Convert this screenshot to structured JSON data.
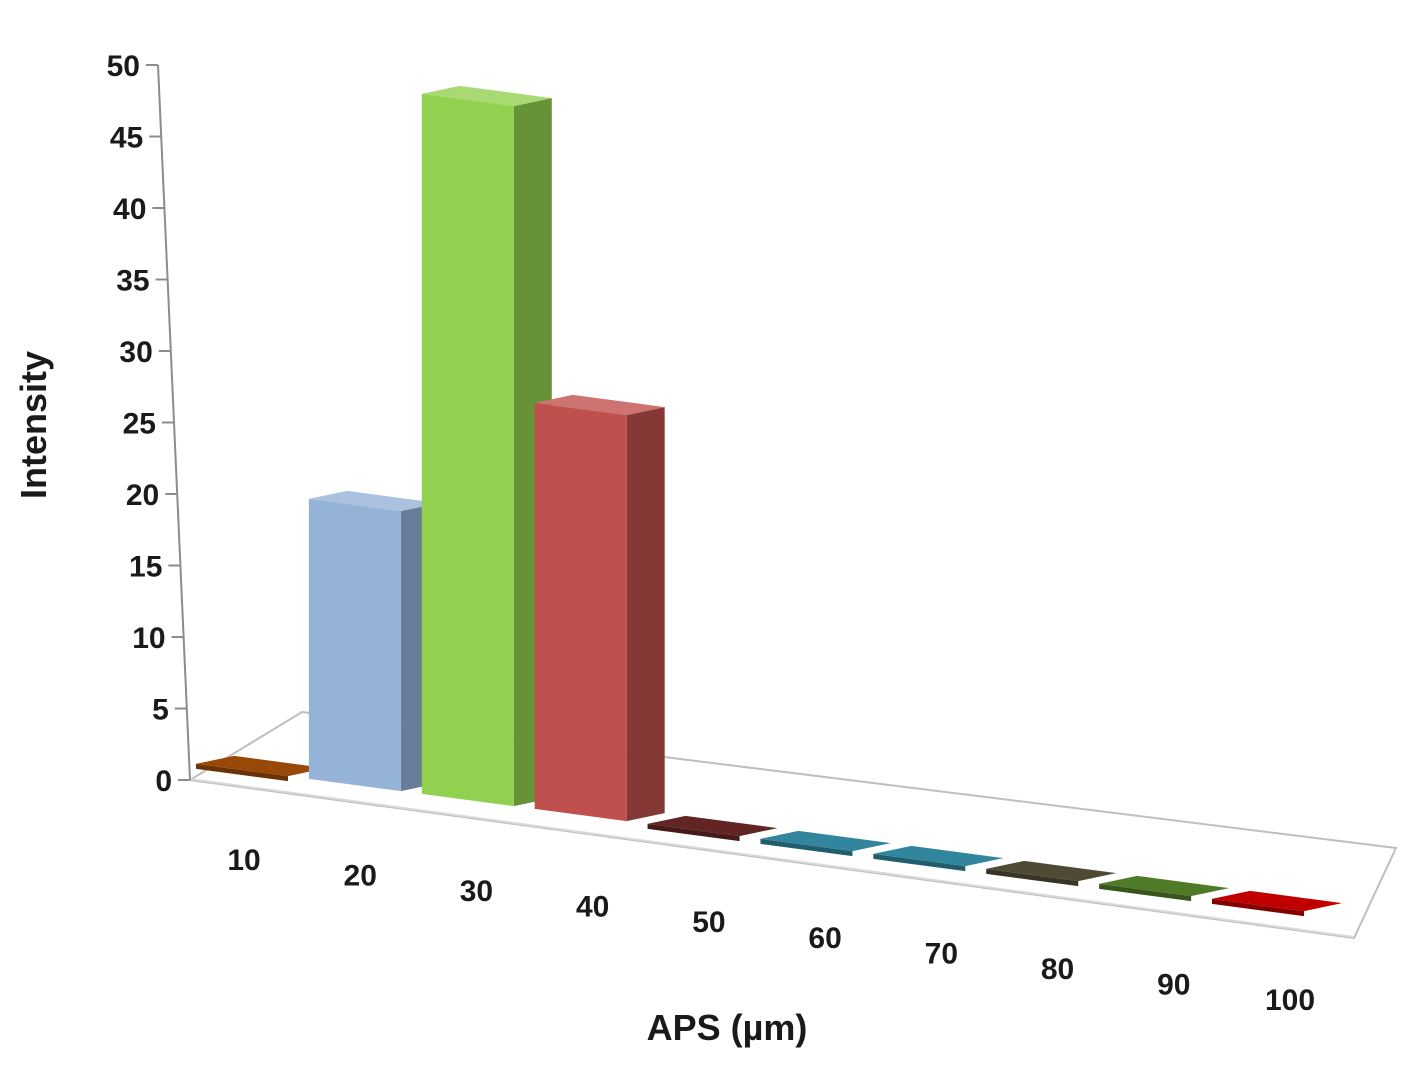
{
  "chart_data": {
    "type": "bar",
    "style": "3d-column",
    "title": "",
    "xlabel": "APS (µm)",
    "ylabel": "Intensity",
    "categories": [
      "10",
      "20",
      "30",
      "40",
      "50",
      "60",
      "70",
      "80",
      "90",
      "100"
    ],
    "values": [
      0,
      20,
      50,
      29,
      0,
      0,
      0,
      0,
      0,
      0
    ],
    "ylim": [
      0,
      50
    ],
    "y_ticks": [
      "0",
      "5",
      "10",
      "15",
      "20",
      "25",
      "30",
      "35",
      "40",
      "45",
      "50"
    ],
    "grid": false,
    "legend": "none",
    "colors": [
      "#984807",
      "#95b3d7",
      "#92d050",
      "#c0504d",
      "#632523",
      "#31859c",
      "#31859c",
      "#4f4a35",
      "#4f7a28",
      "#c00000"
    ]
  }
}
